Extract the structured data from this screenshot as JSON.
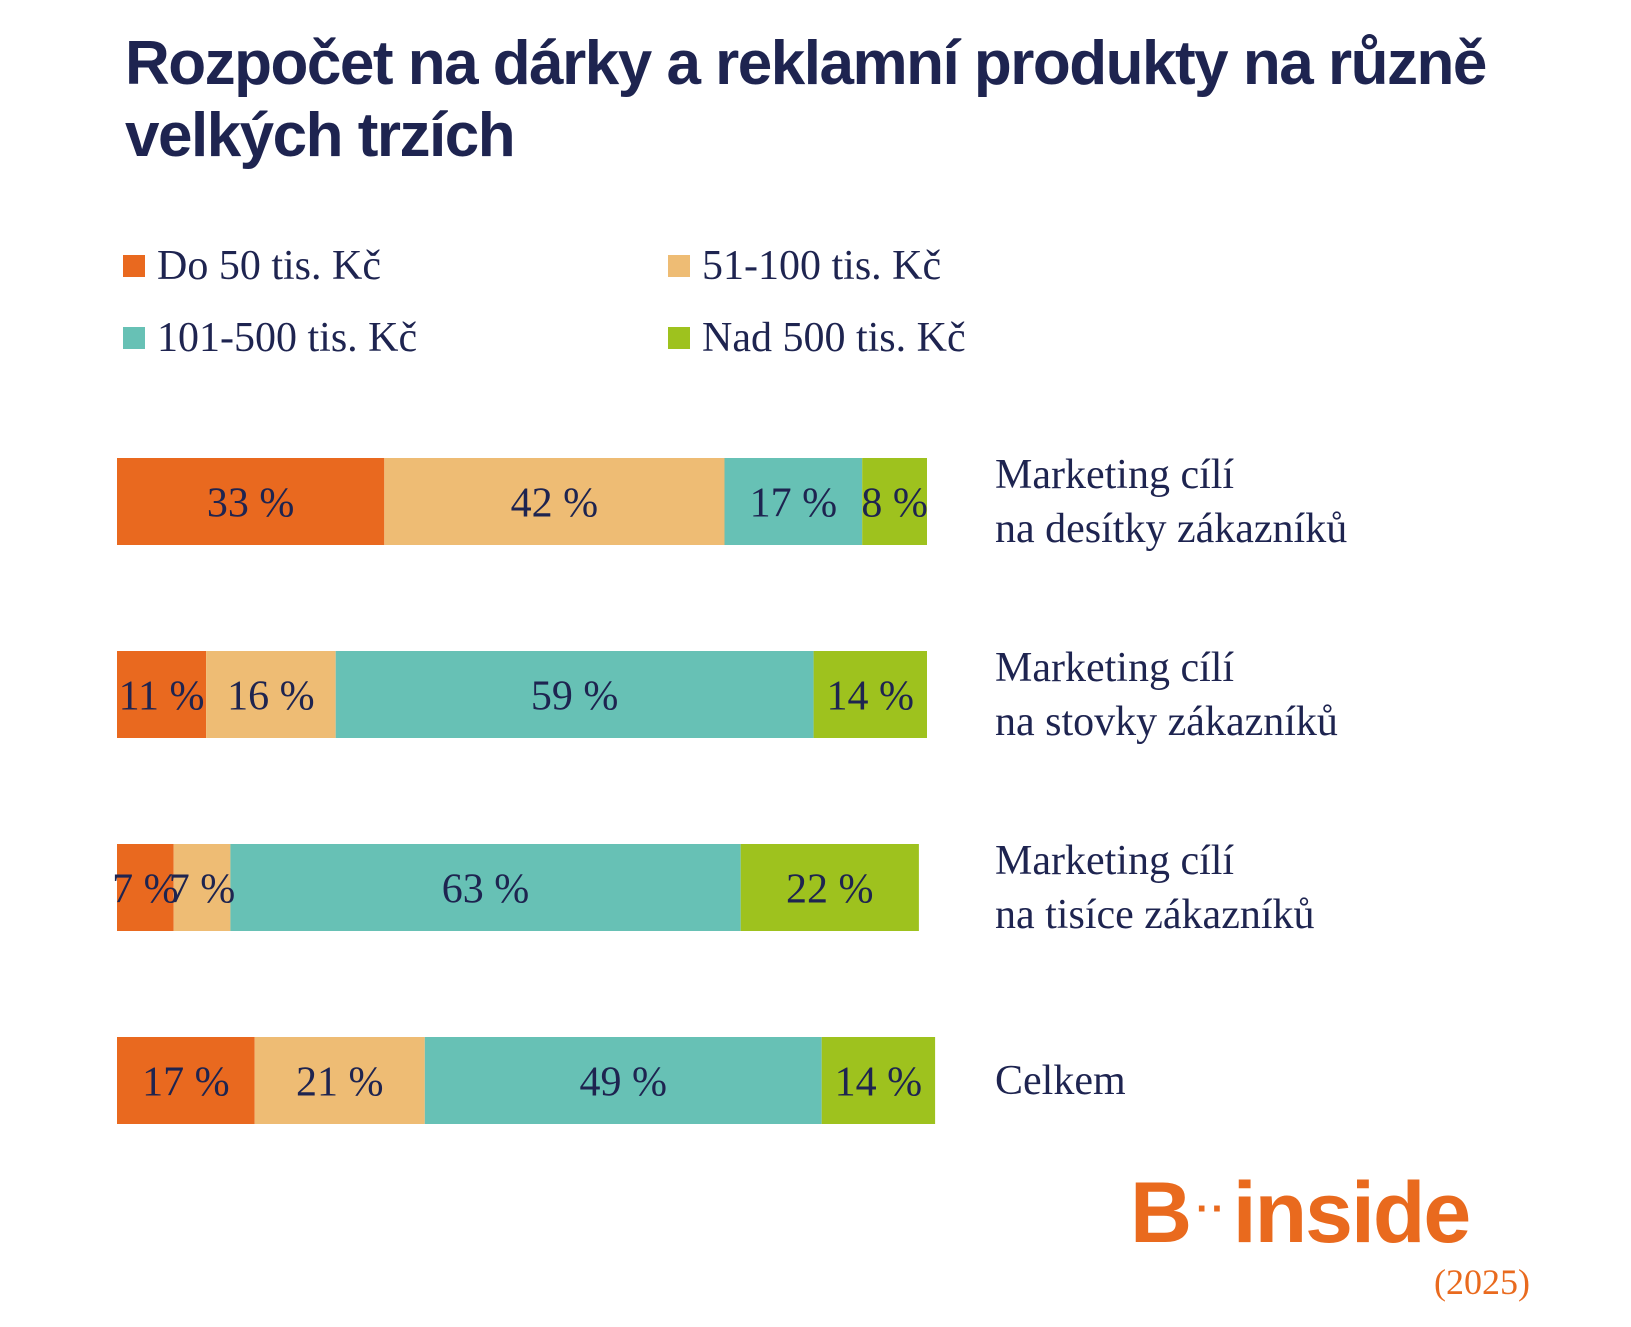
{
  "title": "Rozpočet na dárky a reklamní produkty na různě velkých trzích",
  "legend": [
    {
      "label": "Do 50 tis. Kč",
      "color": "#e9691f"
    },
    {
      "label": "51-100 tis. Kč",
      "color": "#eebc74"
    },
    {
      "label": "101-500 tis. Kč",
      "color": "#67c1b5"
    },
    {
      "label": "Nad 500 tis. Kč",
      "color": "#9ec21e"
    }
  ],
  "chart_data": {
    "type": "bar",
    "orientation": "horizontal",
    "stacked": true,
    "xlim": [
      0,
      100
    ],
    "categories": [
      [
        "Marketing cílí",
        "na desítky zákazníků"
      ],
      [
        "Marketing cílí",
        "na stovky zákazníků"
      ],
      [
        "Marketing cílí",
        "na tisíce zákazníků"
      ],
      [
        "Celkem"
      ]
    ],
    "series": [
      {
        "name": "Do 50 tis. Kč",
        "color": "#e9691f",
        "values": [
          33,
          11,
          7,
          17
        ]
      },
      {
        "name": "51-100 tis. Kč",
        "color": "#eebc74",
        "values": [
          42,
          16,
          7,
          21
        ]
      },
      {
        "name": "101-500 tis. Kč",
        "color": "#67c1b5",
        "values": [
          17,
          59,
          63,
          49
        ]
      },
      {
        "name": "Nad 500 tis. Kč",
        "color": "#9ec21e",
        "values": [
          8,
          14,
          22,
          14
        ]
      }
    ],
    "value_suffix": " %",
    "legend_position": "top"
  },
  "logo": {
    "text_b": "B",
    "dots": "··",
    "text_inside": "inside"
  },
  "year": "(2025)"
}
